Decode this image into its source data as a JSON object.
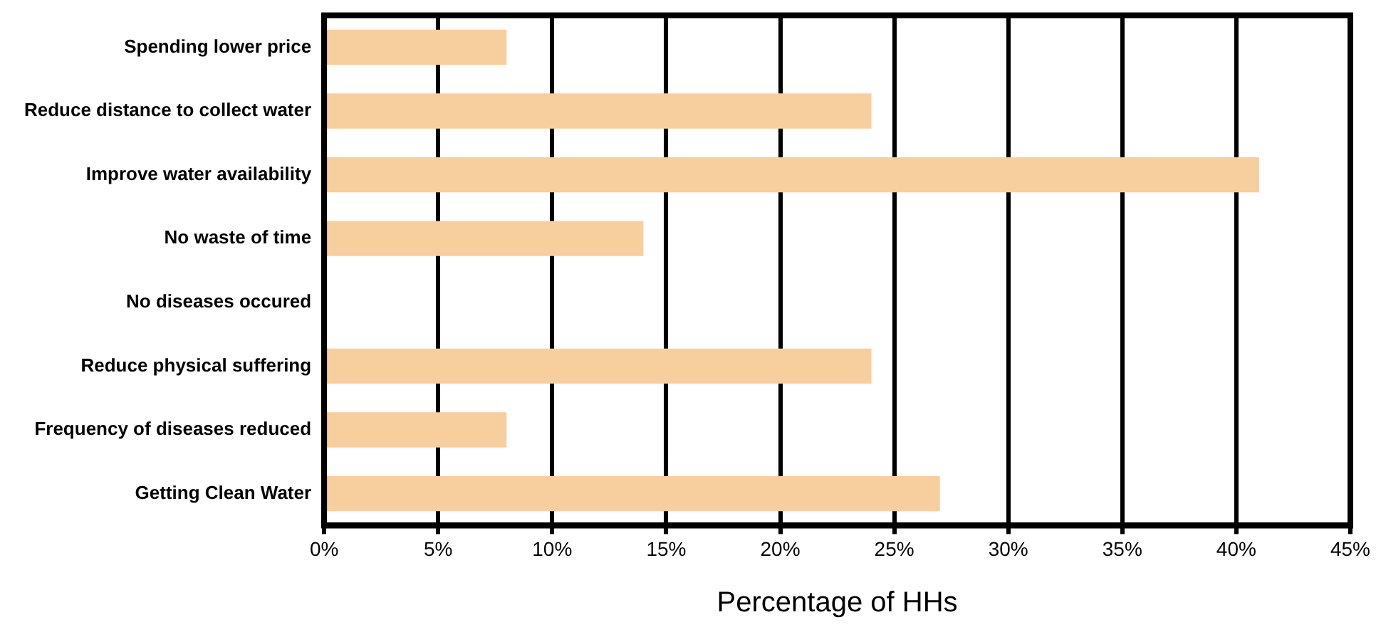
{
  "chart_data": {
    "type": "bar",
    "orientation": "horizontal",
    "xlabel": "Percentage of HHs",
    "categories": [
      "Spending lower price",
      "Reduce distance to collect water",
      "Improve water availability",
      "No waste of time",
      "No diseases occured",
      "Reduce physical suffering",
      "Frequency of diseases reduced",
      "Getting Clean Water"
    ],
    "values": [
      8,
      24,
      41,
      14,
      0,
      24,
      8,
      27
    ],
    "color": "#f7cf9f",
    "xlim": [
      0,
      45
    ],
    "xticks": [
      {
        "value": 0,
        "label": "0%"
      },
      {
        "value": 5,
        "label": "5%"
      },
      {
        "value": 10,
        "label": "10%"
      },
      {
        "value": 15,
        "label": "15%"
      },
      {
        "value": 20,
        "label": "20%"
      },
      {
        "value": 25,
        "label": "25%"
      },
      {
        "value": 30,
        "label": "30%"
      },
      {
        "value": 35,
        "label": "35%"
      },
      {
        "value": 40,
        "label": "40%"
      },
      {
        "value": 45,
        "label": "45%"
      }
    ],
    "grid": "x",
    "legend": false
  }
}
